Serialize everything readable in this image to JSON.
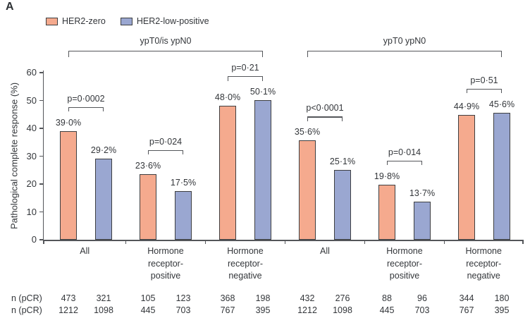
{
  "panel_label": "A",
  "legend": [
    {
      "label": "HER2-zero",
      "color": "#f5aa8e"
    },
    {
      "label": "HER2-low-positive",
      "color": "#9aa7d1"
    }
  ],
  "chart_data": {
    "type": "bar",
    "ylabel": "Pathological complete response (%)",
    "ylim": [
      0,
      60
    ],
    "yticks": [
      "0",
      "10",
      "20",
      "30",
      "40",
      "50",
      "60"
    ],
    "grid": false,
    "legend_position": "top-left",
    "categories": [
      "All",
      "Hormone receptor-positive",
      "Hormone receptor-negative",
      "All",
      "Hormone receptor-positive",
      "Hormone receptor-negative"
    ],
    "category_lines": [
      [
        "All"
      ],
      [
        "Hormone",
        "receptor-",
        "positive"
      ],
      [
        "Hormone",
        "receptor-",
        "negative"
      ],
      [
        "All"
      ],
      [
        "Hormone",
        "receptor-",
        "positive"
      ],
      [
        "Hormone",
        "receptor-",
        "negative"
      ]
    ],
    "series": [
      {
        "name": "HER2-zero",
        "color": "#f5aa8e",
        "values": [
          39.0,
          23.6,
          48.0,
          35.6,
          19.8,
          44.9
        ]
      },
      {
        "name": "HER2-low-positive",
        "color": "#9aa7d1",
        "values": [
          29.2,
          17.5,
          50.1,
          25.1,
          13.7,
          45.6
        ]
      }
    ],
    "value_labels": [
      [
        "39·0%",
        "29·2%"
      ],
      [
        "23·6%",
        "17·5%"
      ],
      [
        "48·0%",
        "50·1%"
      ],
      [
        "35·6%",
        "25·1%"
      ],
      [
        "19·8%",
        "13·7%"
      ],
      [
        "44·9%",
        "45·6%"
      ]
    ],
    "p_values": [
      "p=0·0002",
      "p=0·024",
      "p=0·21",
      "p<0·0001",
      "p=0·014",
      "p=0·51"
    ],
    "span_brackets": [
      {
        "label": "ypT0/is ypN0",
        "from_group": 0,
        "to_group": 2
      },
      {
        "label": "ypT0 ypN0",
        "from_group": 3,
        "to_group": 5
      }
    ],
    "counts": {
      "row1_label": "n (pCR)",
      "row2_label": "n (pCR)",
      "row1": [
        [
          "473",
          "321"
        ],
        [
          "105",
          "123"
        ],
        [
          "368",
          "198"
        ],
        [
          "432",
          "276"
        ],
        [
          "88",
          "96"
        ],
        [
          "344",
          "180"
        ]
      ],
      "row2": [
        [
          "1212",
          "1098"
        ],
        [
          "445",
          "703"
        ],
        [
          "767",
          "395"
        ],
        [
          "1212",
          "1098"
        ],
        [
          "445",
          "703"
        ],
        [
          "767",
          "395"
        ]
      ]
    }
  }
}
